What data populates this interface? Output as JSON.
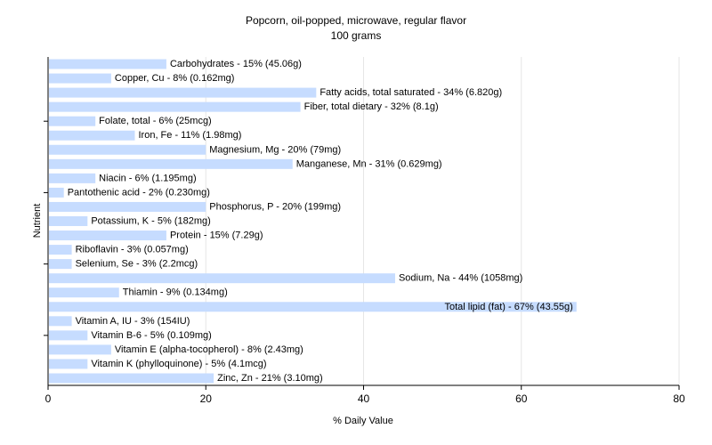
{
  "chart_data": {
    "type": "bar",
    "orientation": "horizontal",
    "title": "Popcorn, oil-popped, microwave, regular flavor",
    "subtitle": "100 grams",
    "xlabel": "% Daily Value",
    "ylabel": "Nutrient",
    "xlim": [
      0,
      80
    ],
    "xticks": [
      0,
      20,
      40,
      60,
      80
    ],
    "grid": true,
    "bar_color": "#c6dcff",
    "categories": [
      "Carbohydrates",
      "Copper, Cu",
      "Fatty acids, total saturated",
      "Fiber, total dietary",
      "Folate, total",
      "Iron, Fe",
      "Magnesium, Mg",
      "Manganese, Mn",
      "Niacin",
      "Pantothenic acid",
      "Phosphorus, P",
      "Potassium, K",
      "Protein",
      "Riboflavin",
      "Selenium, Se",
      "Sodium, Na",
      "Thiamin",
      "Total lipid (fat)",
      "Vitamin A, IU",
      "Vitamin B-6",
      "Vitamin E (alpha-tocopherol)",
      "Vitamin K (phylloquinone)",
      "Zinc, Zn"
    ],
    "values": [
      15,
      8,
      34,
      32,
      6,
      11,
      20,
      31,
      6,
      2,
      20,
      5,
      15,
      3,
      3,
      44,
      9,
      67,
      3,
      5,
      8,
      5,
      21
    ],
    "labels": [
      "Carbohydrates - 15% (45.06g)",
      "Copper, Cu - 8% (0.162mg)",
      "Fatty acids, total saturated - 34% (6.820g)",
      "Fiber, total dietary - 32% (8.1g)",
      "Folate, total - 6% (25mcg)",
      "Iron, Fe - 11% (1.98mg)",
      "Magnesium, Mg - 20% (79mg)",
      "Manganese, Mn - 31% (0.629mg)",
      "Niacin - 6% (1.195mg)",
      "Pantothenic acid - 2% (0.230mg)",
      "Phosphorus, P - 20% (199mg)",
      "Potassium, K - 5% (182mg)",
      "Protein - 15% (7.29g)",
      "Riboflavin - 3% (0.057mg)",
      "Selenium, Se - 3% (2.2mcg)",
      "Sodium, Na - 44% (1058mg)",
      "Thiamin - 9% (0.134mg)",
      "Total lipid (fat) - 67% (43.55g)",
      "Vitamin A, IU - 3% (154IU)",
      "Vitamin B-6 - 5% (0.109mg)",
      "Vitamin E (alpha-tocopherol) - 8% (2.43mg)",
      "Vitamin K (phylloquinone) - 5% (4.1mcg)",
      "Zinc, Zn - 21% (3.10mg)"
    ]
  }
}
